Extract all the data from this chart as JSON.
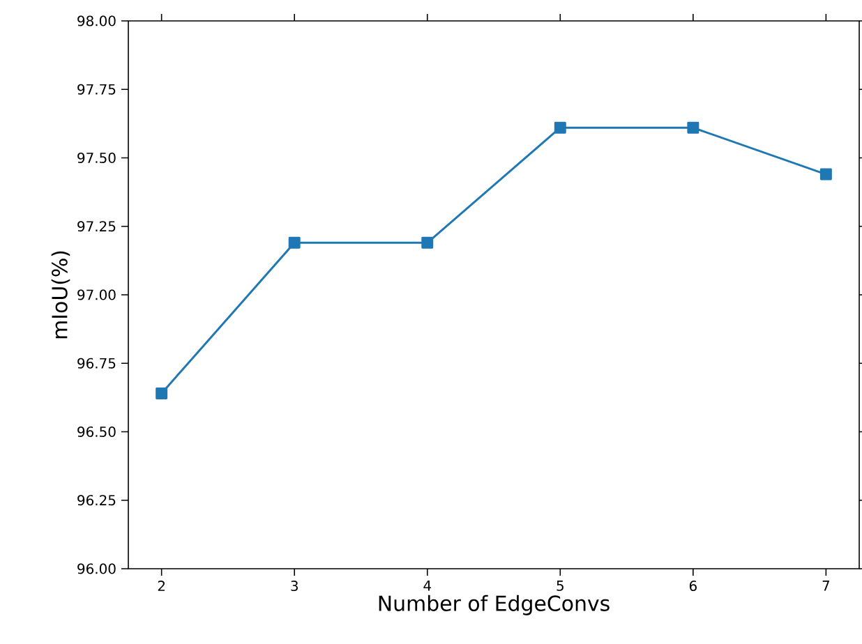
{
  "chart_data": {
    "type": "line",
    "xlabel": "Number of EdgeConvs",
    "ylabel": "mIoU(%)",
    "x": [
      2,
      3,
      4,
      5,
      6,
      7
    ],
    "series": [
      {
        "color": "#1f77b4",
        "values": [
          96.64,
          97.19,
          97.19,
          97.61,
          97.61,
          97.44
        ]
      }
    ],
    "xlim": [
      1.75,
      7.25
    ],
    "ylim": [
      96.0,
      98.0
    ],
    "xticks": [
      2,
      3,
      4,
      5,
      6,
      7
    ],
    "yticks": [
      {
        "value": 96.0,
        "label": "96.00"
      },
      {
        "value": 96.25,
        "label": "96.25"
      },
      {
        "value": 96.5,
        "label": "96.50"
      },
      {
        "value": 96.75,
        "label": "96.75"
      },
      {
        "value": 97.0,
        "label": "97.00"
      },
      {
        "value": 97.25,
        "label": "97.25"
      },
      {
        "value": 97.5,
        "label": "97.50"
      },
      {
        "value": 97.75,
        "label": "97.75"
      },
      {
        "value": 98.0,
        "label": "98.00"
      }
    ],
    "marker": "square",
    "line_style": "solid",
    "grid": false,
    "legend": false
  }
}
